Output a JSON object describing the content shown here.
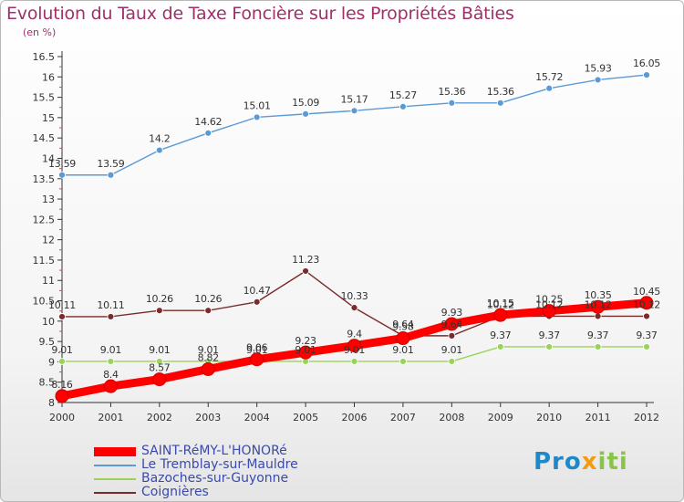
{
  "title": "Evolution du Taux de Taxe Foncière sur les Propriétés Bâties",
  "unit_label": "(en %)",
  "logo_text": "Proxiti",
  "chart_data": {
    "type": "line",
    "title": "Evolution du Taux de Taxe Foncière sur les Propriétés Bâties",
    "ylabel": "(en %)",
    "xlabel": "",
    "x": [
      2000,
      2001,
      2002,
      2003,
      2004,
      2005,
      2006,
      2007,
      2008,
      2009,
      2010,
      2011,
      2012
    ],
    "ylim": [
      8,
      16.5
    ],
    "yticks": [
      8,
      8.5,
      9,
      9.5,
      10,
      10.5,
      11,
      11.5,
      12,
      12.5,
      13,
      13.5,
      14,
      14.5,
      15,
      15.5,
      16,
      16.5
    ],
    "ytick_labels": [
      "8",
      "8.5",
      "9",
      "9.5",
      "10",
      "10.5",
      "11",
      "11.5",
      "12",
      "12.5",
      "13",
      "13.5",
      "14",
      "14.5",
      "15",
      "15.5",
      "16",
      "16.5"
    ],
    "grid": false,
    "legend_position": "bottom-left",
    "series": [
      {
        "name": "Le Tremblay-sur-Mauldre",
        "color": "#5b9bd5",
        "values": [
          13.59,
          13.59,
          14.2,
          14.62,
          15.01,
          15.09,
          15.17,
          15.27,
          15.36,
          15.36,
          15.72,
          15.93,
          16.05
        ],
        "labels": [
          "13.59",
          "13.59",
          "14.2",
          "14.62",
          "15.01",
          "15.09",
          "15.17",
          "15.27",
          "15.36",
          "15.36",
          "15.72",
          "15.93",
          "16.05"
        ]
      },
      {
        "name": "Coignières",
        "color": "#7a2b2b",
        "values": [
          10.11,
          10.11,
          10.26,
          10.26,
          10.47,
          11.23,
          10.33,
          9.64,
          9.64,
          10.12,
          10.12,
          10.12,
          10.12
        ],
        "labels": [
          "10.11",
          "10.11",
          "10.26",
          "10.26",
          "10.47",
          "11.23",
          "10.33",
          "9.64",
          "9.64",
          "10.12",
          "10.12",
          "10.12",
          "10.12"
        ]
      },
      {
        "name": "Bazoches-sur-Guyonne",
        "color": "#9ad35a",
        "values": [
          9.01,
          9.01,
          9.01,
          9.01,
          9.01,
          9.01,
          9.01,
          9.01,
          9.01,
          9.37,
          9.37,
          9.37,
          9.37
        ],
        "labels": [
          "9.01",
          "9.01",
          "9.01",
          "9.01",
          "9.01",
          "9.01",
          "9.01",
          "9.01",
          "9.01",
          "9.37",
          "9.37",
          "9.37",
          "9.37"
        ]
      },
      {
        "name": "SAINT-RéMY-L'HONORé",
        "color": "#ff0000",
        "values": [
          8.16,
          8.4,
          8.57,
          8.82,
          9.06,
          9.23,
          9.4,
          9.58,
          9.93,
          10.15,
          10.25,
          10.35,
          10.45
        ],
        "labels": [
          "8.16",
          "8.4",
          "8.57",
          "8.82",
          "9.06",
          "9.23",
          "9.4",
          "9.58",
          "9.93",
          "10.15",
          "10.25",
          "10.35",
          "10.45"
        ]
      }
    ],
    "legend": [
      {
        "name": "SAINT-RéMY-L'HONORé",
        "color": "#ff0000",
        "thickness": 10
      },
      {
        "name": "Le Tremblay-sur-Mauldre",
        "color": "#5b9bd5",
        "thickness": 2
      },
      {
        "name": "Bazoches-sur-Guyonne",
        "color": "#9ad35a",
        "thickness": 2
      },
      {
        "name": "Coignières",
        "color": "#7a2b2b",
        "thickness": 2
      }
    ]
  }
}
